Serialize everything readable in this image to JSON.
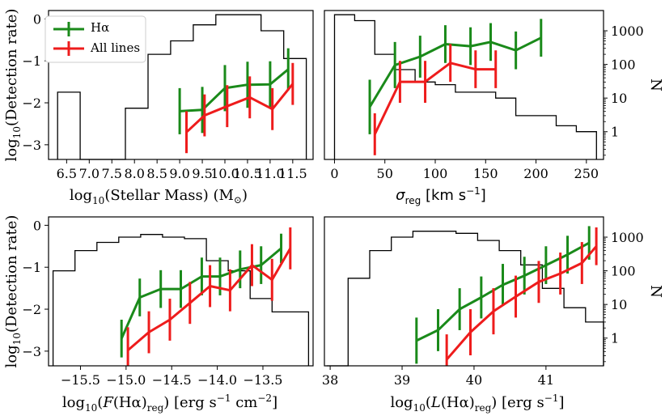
{
  "colors": {
    "halpha": "#1a8a1a",
    "all_lines": "#ee1c1c",
    "hist": "#000000"
  },
  "chart_data": [
    {
      "type": "line",
      "panel": "top-left",
      "xlabel_parts": [
        "log",
        "10",
        "(Stellar Mass) (M",
        "⊙",
        ")"
      ],
      "ylabel_parts": [
        "log",
        "10",
        "(Detection rate)"
      ],
      "xlim": [
        6.1,
        11.95
      ],
      "ylim": [
        -3.35,
        0.2
      ],
      "xticks": [
        6.5,
        7.0,
        7.5,
        8.0,
        8.5,
        9.0,
        9.5,
        10.0,
        10.5,
        11.0,
        11.5
      ],
      "xticklabels": [
        "6.5",
        "7.0",
        "7.5",
        "8.0",
        "8.5",
        "9.0",
        "9.5",
        "10.0",
        "10.5",
        "11.0",
        "11.5"
      ],
      "yticks": [
        0,
        -1,
        -2,
        -3
      ],
      "yticklabels": [
        "0",
        "−1",
        "−2",
        "−3"
      ],
      "legend": {
        "placement": "top-left",
        "entries": [
          {
            "label": "Hα",
            "series": 0
          },
          {
            "label": "All lines",
            "series": 1
          }
        ]
      },
      "series": [
        {
          "name": "Hα",
          "x": [
            9.0,
            9.5,
            10.0,
            10.5,
            11.0,
            11.4
          ],
          "y": [
            -2.2,
            -2.17,
            -1.65,
            -1.57,
            -1.56,
            -1.2
          ],
          "yerr": [
            0.55,
            0.55,
            0.55,
            0.55,
            0.55,
            0.5
          ]
        },
        {
          "name": "All lines",
          "x": [
            9.15,
            9.55,
            10.05,
            10.55,
            11.05,
            11.5
          ],
          "y": [
            -2.7,
            -2.3,
            -2.08,
            -1.87,
            -2.15,
            -1.55
          ],
          "yerr": [
            0.5,
            0.5,
            0.5,
            0.5,
            0.5,
            0.5
          ]
        }
      ],
      "histogram": {
        "edges": [
          6.3,
          6.8,
          7.3,
          7.8,
          8.3,
          8.8,
          9.3,
          9.8,
          10.3,
          10.8,
          11.3,
          11.8
        ],
        "counts": [
          15,
          0,
          0,
          5,
          200,
          500,
          1500,
          3000,
          3000,
          1000,
          150
        ]
      }
    },
    {
      "type": "line",
      "panel": "top-right",
      "xlabel_parts": [
        "σ",
        "reg",
        " [km s",
        "−1",
        "]"
      ],
      "ylabel": "N",
      "xlim": [
        -10,
        267
      ],
      "ylim": [
        -3.35,
        0.2
      ],
      "xticks": [
        0,
        50,
        100,
        150,
        200,
        250
      ],
      "xticklabels": [
        "0",
        "50",
        "100",
        "150",
        "200",
        "250"
      ],
      "n_ticks": [
        1000,
        100,
        10,
        1
      ],
      "n_ticklabels": [
        "1000",
        "100",
        "10",
        "1"
      ],
      "series": [
        {
          "name": "Hα",
          "x": [
            35,
            60,
            85,
            110,
            135,
            155,
            180,
            205
          ],
          "y": [
            -2.1,
            -1.1,
            -0.9,
            -0.6,
            -0.65,
            -0.55,
            -0.75,
            -0.45
          ],
          "yerr": [
            0.65,
            0.55,
            0.5,
            0.45,
            0.45,
            0.45,
            0.45,
            0.45
          ]
        },
        {
          "name": "All lines",
          "x": [
            40,
            65,
            90,
            115,
            140,
            160
          ],
          "y": [
            -2.75,
            -1.5,
            -1.5,
            -1.05,
            -1.2,
            -1.2
          ],
          "yerr": [
            0.5,
            0.5,
            0.5,
            0.45,
            0.45,
            0.45
          ]
        }
      ],
      "histogram": {
        "edges": [
          0,
          20,
          40,
          60,
          80,
          100,
          120,
          140,
          160,
          180,
          200,
          220,
          240,
          260
        ],
        "counts": [
          3000,
          2000,
          200,
          70,
          30,
          25,
          15,
          15,
          10,
          3,
          3,
          1.5,
          1
        ]
      }
    },
    {
      "type": "line",
      "panel": "bottom-left",
      "xlabel_parts": [
        "log",
        "10",
        "(",
        "F",
        "(Hα)",
        "reg",
        ") [erg s",
        "−1",
        " cm",
        "−2",
        "]"
      ],
      "ylabel_parts": [
        "log",
        "10",
        "(Detection rate)"
      ],
      "xlim": [
        -15.85,
        -12.95
      ],
      "ylim": [
        -3.35,
        0.2
      ],
      "xticks": [
        -15.5,
        -15.0,
        -14.5,
        -14.0,
        -13.5
      ],
      "xticklabels": [
        "−15.5",
        "−15.0",
        "−14.5",
        "−14.0",
        "−13.5"
      ],
      "yticks": [
        0,
        -1,
        -2,
        -3
      ],
      "yticklabels": [
        "0",
        "−1",
        "−2",
        "−3"
      ],
      "series": [
        {
          "name": "Hα",
          "x": [
            -15.05,
            -14.85,
            -14.62,
            -14.4,
            -14.17,
            -13.97,
            -13.75,
            -13.52,
            -13.3
          ],
          "y": [
            -2.7,
            -1.72,
            -1.52,
            -1.52,
            -1.22,
            -1.22,
            -1.05,
            -0.95,
            -0.55
          ],
          "yerr": [
            0.45,
            0.45,
            0.45,
            0.45,
            0.45,
            0.45,
            0.45,
            0.45,
            0.35
          ]
        },
        {
          "name": "All lines",
          "x": [
            -14.98,
            -14.75,
            -14.52,
            -14.3,
            -14.08,
            -13.86,
            -13.62,
            -13.4,
            -13.2
          ],
          "y": [
            -2.98,
            -2.55,
            -2.25,
            -1.85,
            -1.45,
            -1.55,
            -0.95,
            -1.3,
            -0.55
          ],
          "yerr": [
            0.55,
            0.5,
            0.5,
            0.5,
            0.5,
            0.5,
            0.5,
            0.5,
            0.5
          ]
        }
      ],
      "histogram": {
        "edges": [
          -15.8,
          -15.56,
          -15.32,
          -15.08,
          -14.84,
          -14.6,
          -14.36,
          -14.12,
          -13.88,
          -13.64,
          -13.4,
          -13.16,
          -13.0
        ],
        "counts": [
          100,
          400,
          700,
          1000,
          1200,
          1000,
          900,
          200,
          100,
          15,
          6,
          6
        ]
      }
    },
    {
      "type": "line",
      "panel": "bottom-right",
      "xlabel_parts": [
        "log",
        "10",
        "(",
        "L",
        "(Hα)",
        "reg",
        ") [erg s",
        "−1",
        "]"
      ],
      "ylabel": "N",
      "xlim": [
        37.92,
        41.8
      ],
      "ylim": [
        -3.35,
        0.2
      ],
      "xticks": [
        38,
        39,
        40,
        41
      ],
      "xticklabels": [
        "38",
        "39",
        "40",
        "41"
      ],
      "n_ticks": [
        1000,
        100,
        10,
        1
      ],
      "n_ticklabels": [
        "1000",
        "100",
        "10",
        "1"
      ],
      "series": [
        {
          "name": "Hα",
          "x": [
            39.2,
            39.5,
            39.8,
            40.1,
            40.4,
            40.7,
            41.0,
            41.3,
            41.6
          ],
          "y": [
            -2.75,
            -2.5,
            -2.0,
            -1.72,
            -1.42,
            -1.2,
            -0.95,
            -0.7,
            -0.42
          ],
          "yerr": [
            0.55,
            0.5,
            0.5,
            0.5,
            0.5,
            0.45,
            0.45,
            0.45,
            0.4
          ]
        },
        {
          "name": "All lines",
          "x": [
            39.62,
            39.95,
            40.27,
            40.58,
            40.9,
            41.2,
            41.5,
            41.7
          ],
          "y": [
            -3.2,
            -2.55,
            -2.05,
            -1.7,
            -1.35,
            -1.15,
            -0.9,
            -0.5
          ],
          "yerr": [
            0.6,
            0.55,
            0.55,
            0.5,
            0.5,
            0.5,
            0.5,
            0.45
          ]
        }
      ],
      "histogram": {
        "edges": [
          37.95,
          38.25,
          38.55,
          38.85,
          39.15,
          39.45,
          39.75,
          40.05,
          40.35,
          40.65,
          40.95,
          41.25,
          41.55,
          41.8
        ],
        "counts": [
          0,
          60,
          400,
          1000,
          1500,
          1500,
          1300,
          800,
          400,
          150,
          30,
          8,
          3
        ]
      }
    }
  ]
}
